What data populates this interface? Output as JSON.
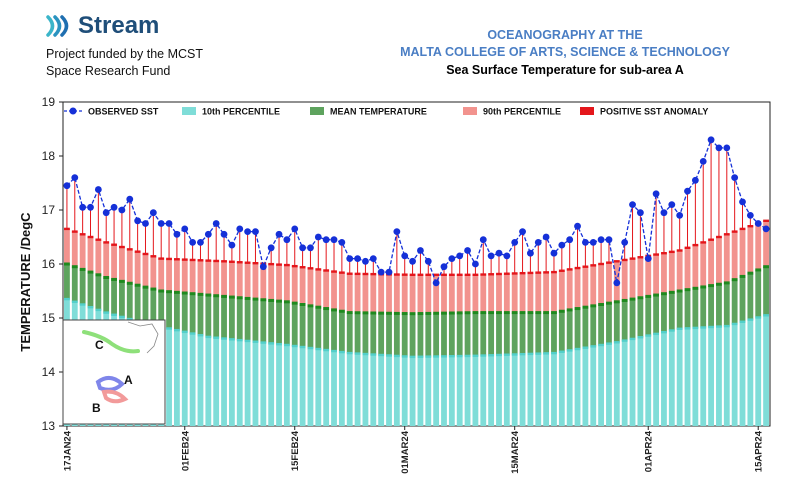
{
  "header": {
    "logo_text": "Stream",
    "funding_line1": "Project funded by the MCST",
    "funding_line2": "Space Research Fund",
    "org_line1": "OCEANOGRAPHY AT THE",
    "org_line2": "MALTA COLLEGE OF ARTS, SCIENCE & TECHNOLOGY",
    "subtitle": "Sea Surface Temperature for sub-area A"
  },
  "colors": {
    "observed": "#1530d8",
    "p10": "#7fddd8",
    "mean": "#5ea35e",
    "mean_line": "#1e8a1e",
    "p90": "#f2938e",
    "anomaly": "#e4161b",
    "p10_line": "#52cfca"
  },
  "inset": {
    "labels": [
      "A",
      "B",
      "C"
    ]
  },
  "chart_data": {
    "type": "bar",
    "title": "Sea Surface Temperature for sub-area A",
    "xlabel": "",
    "ylabel": "TEMPERATURE /DegC",
    "ylim": [
      13,
      19
    ],
    "yticks": [
      13,
      14,
      15,
      16,
      17,
      18,
      19
    ],
    "start_date": "17JAN24",
    "n_days": 90,
    "xticks": [
      {
        "day": 0,
        "label": "17JAN24"
      },
      {
        "day": 15,
        "label": "01FEB24"
      },
      {
        "day": 29,
        "label": "15FEB24"
      },
      {
        "day": 43,
        "label": "01MAR24"
      },
      {
        "day": 57,
        "label": "15MAR24"
      },
      {
        "day": 74,
        "label": "01APR24"
      },
      {
        "day": 88,
        "label": "15APR24"
      }
    ],
    "legend": [
      "OBSERVED SST",
      "10th PERCENTILE",
      "MEAN TEMPERATURE",
      "90th PERCENTILE",
      "POSITIVE SST ANOMALY"
    ],
    "series": [
      {
        "name": "10th PERCENTILE",
        "anchors": [
          [
            0,
            15.35
          ],
          [
            5,
            15.1
          ],
          [
            10,
            14.9
          ],
          [
            18,
            14.65
          ],
          [
            28,
            14.5
          ],
          [
            36,
            14.35
          ],
          [
            44,
            14.28
          ],
          [
            52,
            14.3
          ],
          [
            62,
            14.35
          ],
          [
            70,
            14.55
          ],
          [
            78,
            14.8
          ],
          [
            84,
            14.85
          ],
          [
            89,
            15.05
          ]
        ]
      },
      {
        "name": "MEAN TEMPERATURE",
        "anchors": [
          [
            0,
            16.0
          ],
          [
            5,
            15.75
          ],
          [
            12,
            15.5
          ],
          [
            20,
            15.4
          ],
          [
            28,
            15.3
          ],
          [
            36,
            15.1
          ],
          [
            44,
            15.08
          ],
          [
            52,
            15.1
          ],
          [
            62,
            15.1
          ],
          [
            70,
            15.3
          ],
          [
            78,
            15.5
          ],
          [
            84,
            15.65
          ],
          [
            89,
            15.95
          ]
        ]
      },
      {
        "name": "90th PERCENTILE",
        "anchors": [
          [
            0,
            16.65
          ],
          [
            5,
            16.4
          ],
          [
            12,
            16.1
          ],
          [
            20,
            16.05
          ],
          [
            28,
            15.98
          ],
          [
            36,
            15.82
          ],
          [
            44,
            15.8
          ],
          [
            52,
            15.8
          ],
          [
            62,
            15.85
          ],
          [
            70,
            16.05
          ],
          [
            78,
            16.25
          ],
          [
            84,
            16.55
          ],
          [
            89,
            16.8
          ]
        ]
      },
      {
        "name": "OBSERVED SST",
        "values": [
          17.45,
          17.6,
          17.05,
          17.05,
          17.38,
          16.95,
          17.05,
          17.0,
          17.2,
          16.8,
          16.75,
          16.95,
          16.75,
          16.75,
          16.55,
          16.65,
          16.4,
          16.4,
          16.55,
          16.75,
          16.55,
          16.35,
          16.65,
          16.6,
          16.6,
          15.95,
          16.3,
          16.55,
          16.45,
          16.65,
          16.3,
          16.3,
          16.5,
          16.45,
          16.45,
          16.4,
          16.1,
          16.1,
          16.05,
          16.1,
          15.85,
          15.85,
          16.6,
          16.15,
          16.05,
          16.25,
          16.05,
          15.65,
          15.95,
          16.1,
          16.15,
          16.25,
          16.0,
          16.45,
          16.15,
          16.2,
          16.15,
          16.4,
          16.6,
          16.2,
          16.4,
          16.5,
          16.2,
          16.35,
          16.45,
          16.7,
          16.4,
          16.4,
          16.45,
          16.45,
          15.65,
          16.4,
          17.1,
          16.95,
          16.1,
          17.3,
          16.95,
          17.1,
          16.9,
          17.35,
          17.55,
          17.9,
          18.3,
          18.15,
          18.15,
          17.6,
          17.15,
          16.9,
          16.75,
          16.65
        ]
      },
      {
        "name": "POSITIVE SST ANOMALY",
        "note": "observed minus 90th percentile where observed exceeds it"
      }
    ]
  }
}
